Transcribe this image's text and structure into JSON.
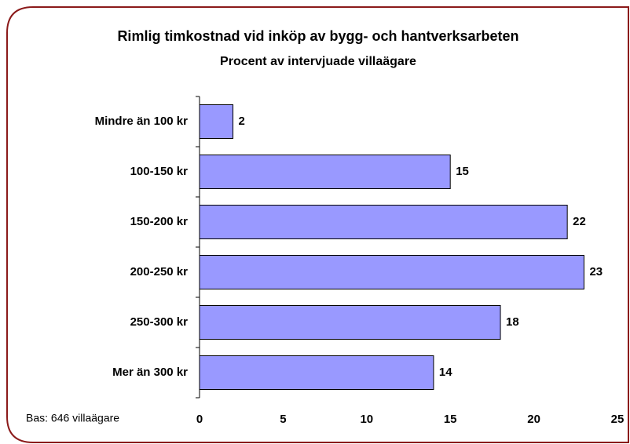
{
  "chart_data": {
    "type": "bar",
    "orientation": "horizontal",
    "title": "Rimlig timkostnad vid inköp av bygg- och hantverksarbeten",
    "subtitle": "Procent av intervjuade villaägare",
    "note": "Bas: 646 villaägare",
    "categories": [
      "Mindre än 100 kr",
      "100-150 kr",
      "150-200 kr",
      "200-250 kr",
      "250-300 kr",
      "Mer än 300 kr"
    ],
    "values": [
      2,
      15,
      22,
      23,
      18,
      14
    ],
    "color": "#9999ff",
    "xlim": [
      0,
      25
    ],
    "xticks": [
      0,
      5,
      10,
      15,
      20,
      25
    ],
    "grid": false
  }
}
